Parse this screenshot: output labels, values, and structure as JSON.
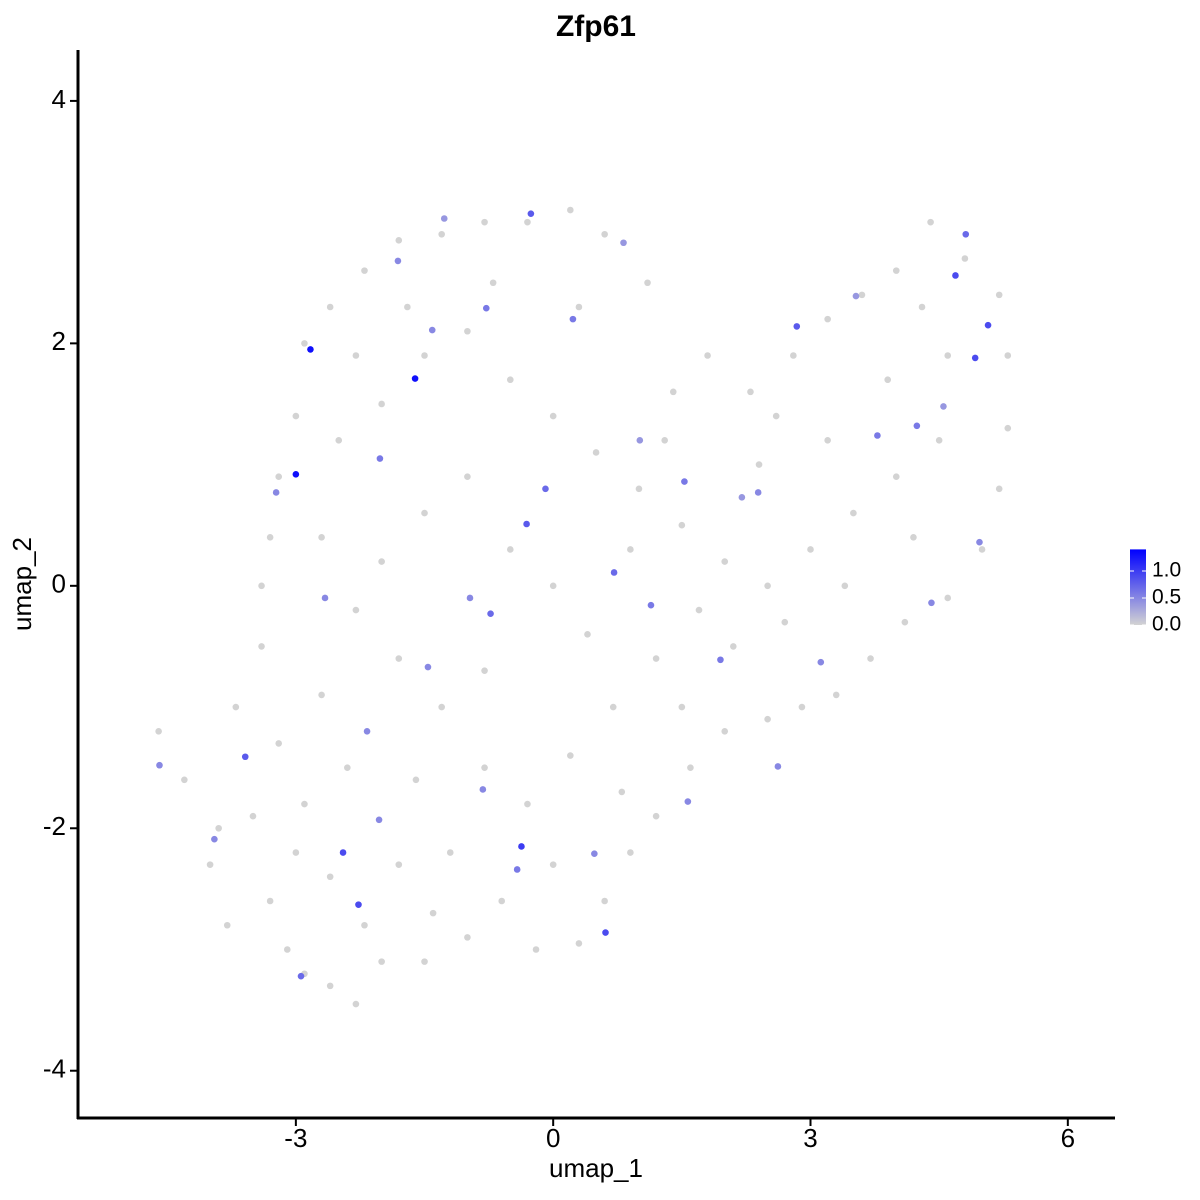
{
  "chart_data": {
    "type": "scatter",
    "title": "Zfp61",
    "x_label": "umap_1",
    "y_label": "umap_2",
    "xlim": [
      -5.54,
      6.55
    ],
    "ylim": [
      -4.39,
      4.42
    ],
    "xticks": [
      -3,
      0,
      3,
      6
    ],
    "yticks": [
      -4,
      -2,
      0,
      2,
      4
    ],
    "colorscale": [
      "#d3d3d3",
      "#0000ff"
    ],
    "colorlim": [
      0,
      1.4
    ],
    "colorticks": [
      {
        "value": 0,
        "label": "0.0"
      },
      {
        "value": 0.5,
        "label": "0.5"
      },
      {
        "value": 1,
        "label": "1.0"
      }
    ],
    "x": [
      -4.6,
      -4.3,
      -4.0,
      -3.8,
      -3.5,
      -3.3,
      -3.1,
      -2.9,
      -2.6,
      -2.3,
      -2.0,
      -1.5,
      -3.7,
      -3.4,
      -3.2,
      -2.9,
      -2.6,
      -2.2,
      -1.8,
      -1.4,
      -1.0,
      -0.6,
      -0.2,
      0.3,
      0.6,
      0.9,
      1.2,
      1.6,
      2.0,
      2.5,
      2.9,
      3.3,
      3.7,
      4.1,
      4.6,
      5.0,
      5.2,
      5.3,
      5.3,
      5.2,
      4.8,
      4.4,
      4.0,
      3.6,
      3.2,
      2.8,
      2.3,
      1.8,
      1.4,
      1.1,
      0.6,
      0.2,
      -0.3,
      -0.8,
      -1.3,
      -1.8,
      -2.2,
      -2.6,
      -2.9,
      -3.0,
      -3.2,
      -3.3,
      -3.4,
      -2.5,
      -2.0,
      -1.5,
      -1.0,
      -0.5,
      0.0,
      0.5,
      1.0,
      1.5,
      2.0,
      2.5,
      3.0,
      3.5,
      4.0,
      4.5,
      3.2,
      2.4,
      1.7,
      1.2,
      0.7,
      0.2,
      -0.3,
      -0.8,
      -1.3,
      -1.8,
      -2.3,
      -2.7,
      -2.0,
      -1.5,
      -1.0,
      -0.5,
      0.0,
      0.4,
      0.9,
      -0.8,
      -1.6,
      -2.4,
      -3.0,
      -3.9,
      -2.7,
      2.1,
      2.7,
      3.4,
      4.2,
      3.9,
      4.6,
      4.3,
      2.6,
      1.3,
      0.3,
      -0.7,
      -1.7,
      -2.3,
      0.0,
      -1.2,
      0.8,
      1.5,
      -2.83,
      -1.61,
      -3.0,
      -0.26,
      -0.37,
      0.61,
      -2.45,
      -2.27,
      5.07,
      4.69,
      4.92,
      4.81,
      2.84,
      -0.31,
      0.71,
      -3.59,
      -2.94,
      -0.73,
      -0.09,
      0.23,
      -0.78,
      1.14,
      1.53,
      1.95,
      3.12,
      3.78,
      4.24,
      4.97,
      4.41,
      1.57,
      2.62,
      -1.46,
      -2.17,
      -3.95,
      -4.59,
      -3.23,
      -2.02,
      -1.41,
      -1.27,
      0.82,
      -1.81,
      -2.66,
      -0.97,
      -0.82,
      0.48,
      -2.03,
      2.39,
      2.2,
      3.53,
      4.55,
      1.01,
      -0.42
    ],
    "y": [
      -1.2,
      -1.6,
      -2.3,
      -2.8,
      -1.9,
      -2.6,
      -3.0,
      -3.2,
      -3.3,
      -3.45,
      -3.1,
      -3.1,
      -1.0,
      -0.5,
      -1.3,
      -1.8,
      -2.4,
      -2.8,
      -2.3,
      -2.7,
      -2.9,
      -2.6,
      -3.0,
      -2.95,
      -2.6,
      -2.2,
      -1.9,
      -1.5,
      -1.2,
      -1.1,
      -1.0,
      -0.9,
      -0.6,
      -0.3,
      -0.1,
      0.3,
      0.8,
      1.3,
      1.9,
      2.4,
      2.7,
      3.0,
      2.6,
      2.4,
      2.2,
      1.9,
      1.6,
      1.9,
      1.6,
      2.5,
      2.9,
      3.1,
      3.0,
      3.0,
      2.9,
      2.85,
      2.6,
      2.3,
      2.0,
      1.4,
      0.9,
      0.4,
      0.0,
      1.2,
      1.5,
      1.9,
      2.1,
      1.7,
      1.4,
      1.1,
      0.8,
      0.5,
      0.2,
      0.0,
      0.3,
      0.6,
      0.9,
      1.2,
      1.2,
      1.0,
      -0.2,
      -0.6,
      -1.0,
      -1.4,
      -1.8,
      -1.5,
      -1.0,
      -0.6,
      -0.2,
      0.4,
      0.2,
      0.6,
      0.9,
      0.3,
      0.0,
      -0.4,
      0.3,
      -0.7,
      -1.6,
      -1.5,
      -2.2,
      -2.0,
      -0.9,
      -0.5,
      -0.3,
      0.0,
      0.4,
      1.7,
      1.9,
      2.3,
      1.4,
      1.2,
      2.3,
      2.5,
      2.3,
      1.9,
      -2.3,
      -2.2,
      -1.7,
      -1.0,
      1.95,
      1.71,
      0.92,
      3.07,
      -2.15,
      -2.86,
      -2.2,
      -2.63,
      2.15,
      2.56,
      1.88,
      2.9,
      2.14,
      0.51,
      0.11,
      -1.41,
      -3.22,
      -0.23,
      0.8,
      2.2,
      2.29,
      -0.16,
      0.86,
      -0.61,
      -0.63,
      1.24,
      1.32,
      0.36,
      -0.14,
      -1.78,
      -1.49,
      -0.67,
      -1.2,
      -2.09,
      -1.48,
      0.77,
      1.05,
      2.11,
      3.03,
      2.83,
      2.68,
      -0.1,
      -0.1,
      -1.68,
      -2.21,
      -1.93,
      0.77,
      0.73,
      2.39,
      1.48,
      1.2,
      -2.34
    ],
    "values": [
      0,
      0,
      0,
      0,
      0,
      0,
      0,
      0,
      0,
      0,
      0,
      0,
      0,
      0,
      0,
      0,
      0,
      0,
      0,
      0,
      0,
      0,
      0,
      0,
      0,
      0,
      0,
      0,
      0,
      0,
      0,
      0,
      0,
      0,
      0,
      0,
      0,
      0,
      0,
      0,
      0,
      0,
      0,
      0,
      0,
      0,
      0,
      0,
      0,
      0,
      0,
      0,
      0,
      0,
      0,
      0,
      0,
      0,
      0,
      0,
      0,
      0,
      0,
      0,
      0,
      0,
      0,
      0,
      0,
      0,
      0,
      0,
      0,
      0,
      0,
      0,
      0,
      0,
      0,
      0,
      0,
      0,
      0,
      0,
      0,
      0,
      0,
      0,
      0,
      0,
      0,
      0,
      0,
      0,
      0,
      0,
      0,
      0,
      0,
      0,
      0,
      0,
      0,
      0,
      0,
      0,
      0,
      0,
      0,
      0,
      0,
      0,
      0,
      0,
      0,
      0,
      0,
      0,
      0,
      0,
      1.3,
      1.3,
      1.3,
      0.8,
      1.0,
      0.9,
      0.9,
      0.9,
      0.9,
      0.9,
      0.9,
      0.7,
      0.8,
      0.8,
      0.7,
      0.8,
      0.7,
      0.7,
      0.7,
      0.6,
      0.6,
      0.6,
      0.6,
      0.6,
      0.5,
      0.6,
      0.6,
      0.5,
      0.5,
      0.5,
      0.5,
      0.5,
      0.5,
      0.5,
      0.5,
      0.5,
      0.6,
      0.5,
      0.4,
      0.4,
      0.5,
      0.5,
      0.5,
      0.5,
      0.5,
      0.5,
      0.5,
      0.4,
      0.4,
      0.4,
      0.4,
      0.6
    ]
  }
}
